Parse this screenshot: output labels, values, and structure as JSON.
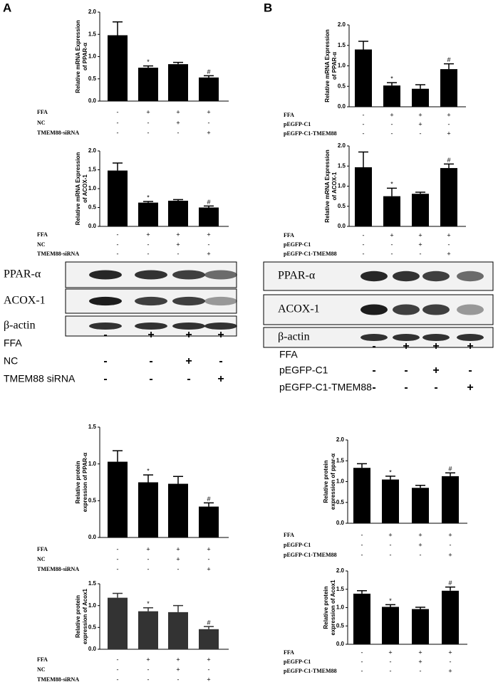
{
  "panel_labels": [
    "A",
    "B"
  ],
  "chart_data": [
    {
      "type": "bar",
      "ylabel": [
        "Relative mRNA Expression",
        "of PPAR-α"
      ],
      "color": "#000000",
      "values": [
        1.48,
        0.75,
        0.83,
        0.53
      ],
      "errors": [
        0.3,
        0.04,
        0.04,
        0.04
      ],
      "significance": [
        null,
        "*",
        null,
        "#"
      ],
      "ylim": [
        0,
        2
      ],
      "yticks": [
        {
          "value": 0,
          "label": "0.0"
        },
        0.5,
        {
          "value": 1,
          "label": "1.0"
        },
        1.5,
        {
          "value": 2,
          "label": "2.0"
        }
      ],
      "conditions": [
        {
          "name": "FFA",
          "signs": [
            "-",
            "+",
            "+",
            "+"
          ]
        },
        {
          "name": "NC",
          "signs": [
            "-",
            "-",
            "+",
            "-"
          ]
        },
        {
          "name": "TMEM88-siRNA",
          "signs": [
            "-",
            "-",
            "-",
            "+"
          ]
        }
      ]
    },
    {
      "type": "bar",
      "ylabel": [
        "Relative mRNA Expression",
        "of ACOX-1"
      ],
      "color": "#000000",
      "values": [
        1.48,
        0.63,
        0.68,
        0.5
      ],
      "errors": [
        0.2,
        0.03,
        0.03,
        0.04
      ],
      "significance": [
        null,
        "*",
        null,
        "#"
      ],
      "ylim": [
        0,
        2
      ],
      "yticks": [
        {
          "value": 0,
          "label": "0.0"
        },
        0.5,
        {
          "value": 1,
          "label": "1.0"
        },
        1.5,
        {
          "value": 2,
          "label": "2.0"
        }
      ],
      "conditions": [
        {
          "name": "FFA",
          "signs": [
            "-",
            "+",
            "+",
            "+"
          ]
        },
        {
          "name": "NC",
          "signs": [
            "-",
            "-",
            "+",
            "-"
          ]
        },
        {
          "name": "TMEM88-siRNA",
          "signs": [
            "-",
            "-",
            "-",
            "+"
          ]
        }
      ]
    },
    {
      "type": "bar",
      "ylabel": [
        "Relative protein",
        "expression of PPAR-α"
      ],
      "color": "#000000",
      "values": [
        1.03,
        0.75,
        0.73,
        0.42
      ],
      "errors": [
        0.15,
        0.1,
        0.1,
        0.05
      ],
      "significance": [
        null,
        "*",
        null,
        "#"
      ],
      "ylim": [
        0,
        1.5
      ],
      "yticks": [
        {
          "value": 0,
          "label": "0.0"
        },
        0.5,
        {
          "value": 1,
          "label": "1.0"
        },
        1.5
      ],
      "conditions": [
        {
          "name": "FFA",
          "signs": [
            "-",
            "+",
            "+",
            "+"
          ]
        },
        {
          "name": "NC",
          "signs": [
            "-",
            "-",
            "+",
            "-"
          ]
        },
        {
          "name": "TMEM88-siRNA",
          "signs": [
            "-",
            "-",
            "-",
            "+"
          ]
        }
      ]
    },
    {
      "type": "bar",
      "ylabel": [
        "Relative protein",
        "expression of Acox1"
      ],
      "color": "#333333",
      "values": [
        1.18,
        0.87,
        0.85,
        0.46
      ],
      "errors": [
        0.1,
        0.08,
        0.15,
        0.06
      ],
      "significance": [
        null,
        "*",
        null,
        "#"
      ],
      "ylim": [
        0,
        1.5
      ],
      "yticks": [
        {
          "value": 0,
          "label": "0.0"
        },
        0.5,
        {
          "value": 1,
          "label": "1.0"
        },
        1.5
      ],
      "conditions": [
        {
          "name": "FFA",
          "signs": [
            "-",
            "+",
            "+",
            "+"
          ]
        },
        {
          "name": "NC",
          "signs": [
            "-",
            "-",
            "+",
            "-"
          ]
        },
        {
          "name": "TMEM88-siRNA",
          "signs": [
            "-",
            "-",
            "-",
            "+"
          ]
        }
      ]
    },
    {
      "type": "bar",
      "ylabel": [
        "Relative mRNA Expression",
        "of PPAR-α"
      ],
      "color": "#000000",
      "values": [
        1.4,
        0.52,
        0.44,
        0.92
      ],
      "errors": [
        0.2,
        0.07,
        0.1,
        0.13
      ],
      "significance": [
        null,
        "*",
        null,
        "#"
      ],
      "ylim": [
        0,
        2
      ],
      "yticks": [
        {
          "value": 0,
          "label": "0.0"
        },
        0.5,
        {
          "value": 1,
          "label": "1.0"
        },
        1.5,
        {
          "value": 2,
          "label": "2.0"
        }
      ],
      "conditions": [
        {
          "name": "FFA",
          "signs": [
            "-",
            "+",
            "+",
            "+"
          ]
        },
        {
          "name": "pEGFP-C1",
          "signs": [
            "-",
            "-",
            "+",
            "-"
          ]
        },
        {
          "name": "pEGFP-C1-TMEM88",
          "signs": [
            "-",
            "-",
            "-",
            "+"
          ]
        }
      ]
    },
    {
      "type": "bar",
      "ylabel": [
        "Relative mRNA Expression",
        "of ACOX-1"
      ],
      "color": "#000000",
      "values": [
        1.47,
        0.75,
        0.81,
        1.45
      ],
      "errors": [
        0.38,
        0.2,
        0.04,
        0.1
      ],
      "significance": [
        null,
        "*",
        null,
        "#"
      ],
      "ylim": [
        0,
        2
      ],
      "yticks": [
        {
          "value": 0,
          "label": "0.0"
        },
        0.5,
        {
          "value": 1,
          "label": "1.0"
        },
        1.5,
        {
          "value": 2,
          "label": "2.0"
        }
      ],
      "conditions": [
        {
          "name": "FFA",
          "signs": [
            "-",
            "+",
            "+",
            "+"
          ]
        },
        {
          "name": "pEGFP-C1",
          "signs": [
            "-",
            "-",
            "+",
            "-"
          ]
        },
        {
          "name": "pEGFP-C1-TMEM88",
          "signs": [
            "-",
            "-",
            "-",
            "+"
          ]
        }
      ]
    },
    {
      "type": "bar",
      "ylabel": [
        "Relative protein",
        "expression of ppar-α"
      ],
      "color": "#000000",
      "values": [
        1.33,
        1.05,
        0.85,
        1.13
      ],
      "errors": [
        0.1,
        0.08,
        0.06,
        0.08
      ],
      "significance": [
        null,
        "*",
        null,
        "#"
      ],
      "ylim": [
        0,
        2
      ],
      "yticks": [
        {
          "value": 0,
          "label": "0.0"
        },
        0.5,
        {
          "value": 1,
          "label": "1.0"
        },
        1.5,
        {
          "value": 2,
          "label": "2.0"
        }
      ],
      "conditions": [
        {
          "name": "FFA",
          "signs": [
            "-",
            "+",
            "+",
            "+"
          ]
        },
        {
          "name": "pEGFP-C1",
          "signs": [
            "-",
            "-",
            "+",
            "-"
          ]
        },
        {
          "name": "pEGFP-C1-TMEM88",
          "signs": [
            "-",
            "-",
            "-",
            "+"
          ]
        }
      ]
    },
    {
      "type": "bar",
      "ylabel": [
        "Relative protein",
        "expression of Acox1"
      ],
      "color": "#000000",
      "values": [
        1.38,
        1.02,
        0.96,
        1.46
      ],
      "errors": [
        0.08,
        0.06,
        0.05,
        0.1
      ],
      "significance": [
        null,
        "*",
        null,
        "#"
      ],
      "ylim": [
        0,
        2
      ],
      "yticks": [
        {
          "value": 0,
          "label": "0.0"
        },
        0.5,
        {
          "value": 1,
          "label": "1.0"
        },
        1.5,
        {
          "value": 2,
          "label": "2.0"
        }
      ],
      "conditions": [
        {
          "name": "FFA",
          "signs": [
            "-",
            "+",
            "+",
            "+"
          ]
        },
        {
          "name": "pEGFP-C1",
          "signs": [
            "-",
            "-",
            "+",
            "-"
          ]
        },
        {
          "name": "pEGFP-C1-TMEM88",
          "signs": [
            "-",
            "-",
            "-",
            "+"
          ]
        }
      ]
    }
  ],
  "blots": [
    {
      "bands": [
        "PPAR-α",
        "ACOX-1",
        "β-actin"
      ],
      "conditions": [
        {
          "name": "FFA",
          "signs": [
            "-",
            "+",
            "+",
            "+"
          ]
        },
        {
          "name": "NC",
          "signs": [
            "-",
            "-",
            "+",
            "-"
          ]
        },
        {
          "name": "TMEM88 siRNA",
          "signs": [
            "-",
            "-",
            "-",
            "+"
          ]
        }
      ]
    },
    {
      "bands": [
        "PPAR-α",
        "ACOX-1",
        "β-actin"
      ],
      "conditions": [
        {
          "name": "FFA",
          "signs": [
            "-",
            "+",
            "+",
            "+"
          ]
        },
        {
          "name": "pEGFP-C1",
          "signs": [
            "-",
            "-",
            "+",
            "-"
          ]
        },
        {
          "name": "pEGFP-C1-TMEM88",
          "signs": [
            "-",
            "-",
            "-",
            "+"
          ]
        }
      ]
    }
  ]
}
